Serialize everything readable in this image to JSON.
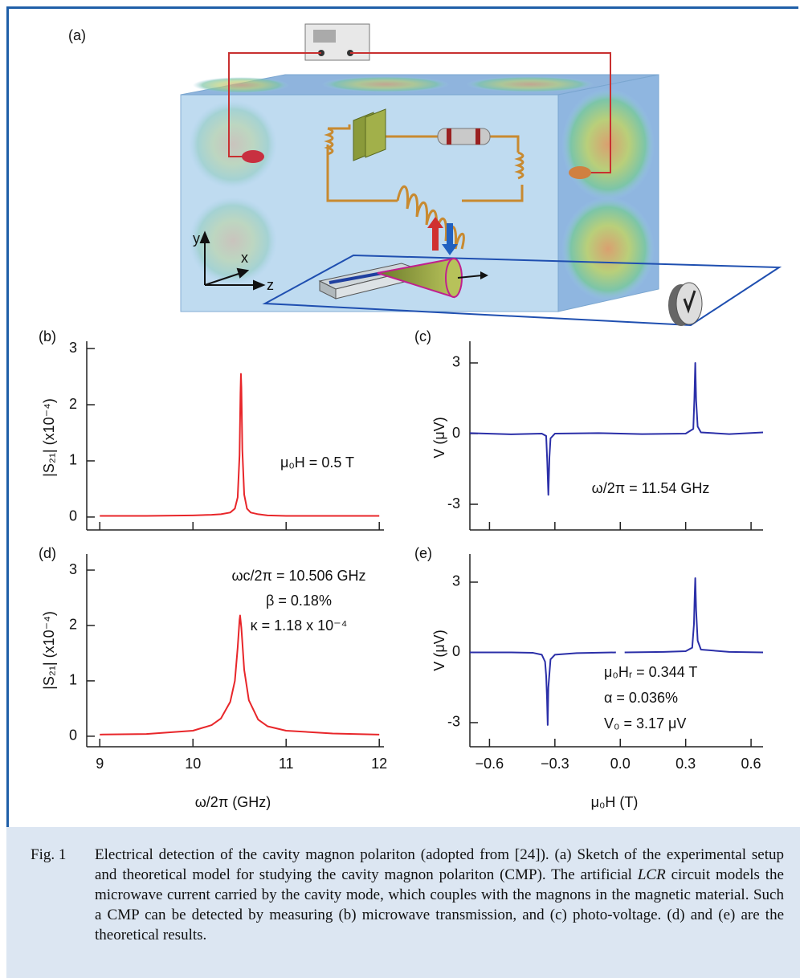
{
  "panel_a": {
    "label": "(a)",
    "axes": [
      "y",
      "x",
      "z"
    ]
  },
  "chart_data": [
    {
      "type": "line",
      "panel_label": "(b)",
      "ylabel": "|S₂₁| (x10⁻⁴)",
      "annotations": [
        "μ₀H = 0.5 T"
      ],
      "x": [
        9.0,
        9.5,
        10.0,
        10.2,
        10.3,
        10.4,
        10.45,
        10.48,
        10.5,
        10.51,
        10.515,
        10.52,
        10.53,
        10.55,
        10.58,
        10.62,
        10.7,
        10.8,
        11.0,
        11.5,
        12.0
      ],
      "values": [
        0.02,
        0.02,
        0.03,
        0.04,
        0.05,
        0.08,
        0.15,
        0.35,
        1.1,
        2.2,
        2.55,
        2.3,
        1.2,
        0.4,
        0.15,
        0.08,
        0.05,
        0.03,
        0.02,
        0.02,
        0.02
      ],
      "color": "#e8262a",
      "xlim": [
        8.86,
        12.05
      ],
      "ylim": [
        -0.23,
        3.13
      ],
      "xticks": [
        9,
        10,
        11,
        12
      ],
      "yticks": [
        0,
        1,
        2,
        3
      ],
      "xtick_labels": false
    },
    {
      "type": "line",
      "panel_label": "(c)",
      "ylabel": "V (μV)",
      "annotations": [
        "ω/2π = 11.54 GHz"
      ],
      "x": [
        -0.69,
        -0.5,
        -0.36,
        -0.34,
        -0.335,
        -0.33,
        -0.325,
        -0.32,
        -0.3,
        -0.1,
        0.1,
        0.3,
        0.335,
        0.34,
        0.344,
        0.348,
        0.355,
        0.37,
        0.5,
        0.655
      ],
      "values": [
        0.02,
        -0.03,
        0,
        -0.1,
        -1.2,
        -2.6,
        -1.0,
        -0.2,
        0,
        0.02,
        -0.02,
        0,
        0.2,
        1.5,
        3.0,
        1.4,
        0.3,
        0.05,
        -0.02,
        0.05
      ],
      "color": "#2b2fa8",
      "xlim": [
        -0.69,
        0.655
      ],
      "ylim": [
        -4.09,
        3.92
      ],
      "xticks": [
        -0.6,
        -0.3,
        0,
        0.3,
        0.6
      ],
      "yticks": [
        -3,
        0,
        3
      ],
      "xtick_labels": false
    },
    {
      "type": "line",
      "panel_label": "(d)",
      "ylabel": "|S₂₁| (x10⁻⁴)",
      "xlabel": "ω/2π  (GHz)",
      "annotations": [
        "ωc/2π = 10.506 GHz",
        "β = 0.18%",
        "κ = 1.18 x 10⁻⁴"
      ],
      "x": [
        9.0,
        9.5,
        10.0,
        10.2,
        10.3,
        10.4,
        10.45,
        10.48,
        10.5,
        10.506,
        10.52,
        10.55,
        10.6,
        10.7,
        10.8,
        11.0,
        11.5,
        12.0
      ],
      "values": [
        0.03,
        0.04,
        0.1,
        0.2,
        0.32,
        0.62,
        1.0,
        1.6,
        2.1,
        2.18,
        1.95,
        1.2,
        0.65,
        0.3,
        0.18,
        0.1,
        0.05,
        0.03
      ],
      "color": "#e8262a",
      "xlim": [
        8.86,
        12.05
      ],
      "ylim": [
        -0.19,
        3.29
      ],
      "xticks": [
        9,
        10,
        11,
        12
      ],
      "yticks": [
        0,
        1,
        2,
        3
      ],
      "xtick_labels": true
    },
    {
      "type": "line",
      "panel_label": "(e)",
      "ylabel": "V (μV)",
      "xlabel": "μ₀H (T)",
      "annotations": [
        "μ₀Hᵣ = 0.344 T",
        "α = 0.036%",
        "V₀ = 3.17 μV"
      ],
      "x": [
        -0.69,
        -0.5,
        -0.4,
        -0.36,
        -0.345,
        -0.34,
        -0.336,
        -0.333,
        -0.33,
        -0.32,
        -0.3,
        -0.2,
        -0.02,
        0,
        0.02,
        0.2,
        0.3,
        0.33,
        0.338,
        0.341,
        0.344,
        0.348,
        0.355,
        0.37,
        0.5,
        0.655
      ],
      "values": [
        0,
        0,
        -0.02,
        -0.1,
        -0.4,
        -1.0,
        -2.0,
        -3.1,
        -1.5,
        -0.3,
        -0.1,
        -0.03,
        0,
        null,
        0,
        0.02,
        0.05,
        0.2,
        1.2,
        2.3,
        3.17,
        1.8,
        0.5,
        0.12,
        0.02,
        0
      ],
      "color": "#2b2fa8",
      "xlim": [
        -0.69,
        0.655
      ],
      "ylim": [
        -4.03,
        4.2
      ],
      "xticks": [
        {
          "value": -0.6,
          "label": "−0.6"
        },
        {
          "value": -0.3,
          "label": "−0.3"
        },
        {
          "value": 0,
          "label": "0.0"
        },
        0.3,
        0.6
      ],
      "yticks": [
        -3,
        0,
        3
      ],
      "xtick_labels": true
    }
  ],
  "caption": {
    "label": "Fig. 1",
    "text": [
      "Electrical detection of the cavity magnon polariton (adopted from [24]). (a) Sketch of the experimental setup and theoretical model for studying the cavity magnon polariton (CMP). The artificial ",
      "LCR",
      " circuit models the microwave current carried by the cavity mode, which couples with the magnons in the magnetic material. Such a CMP can be detected by measuring (b) microwave transmission, and (c) photo-voltage. (d) and (e) are the theoretical results."
    ]
  }
}
